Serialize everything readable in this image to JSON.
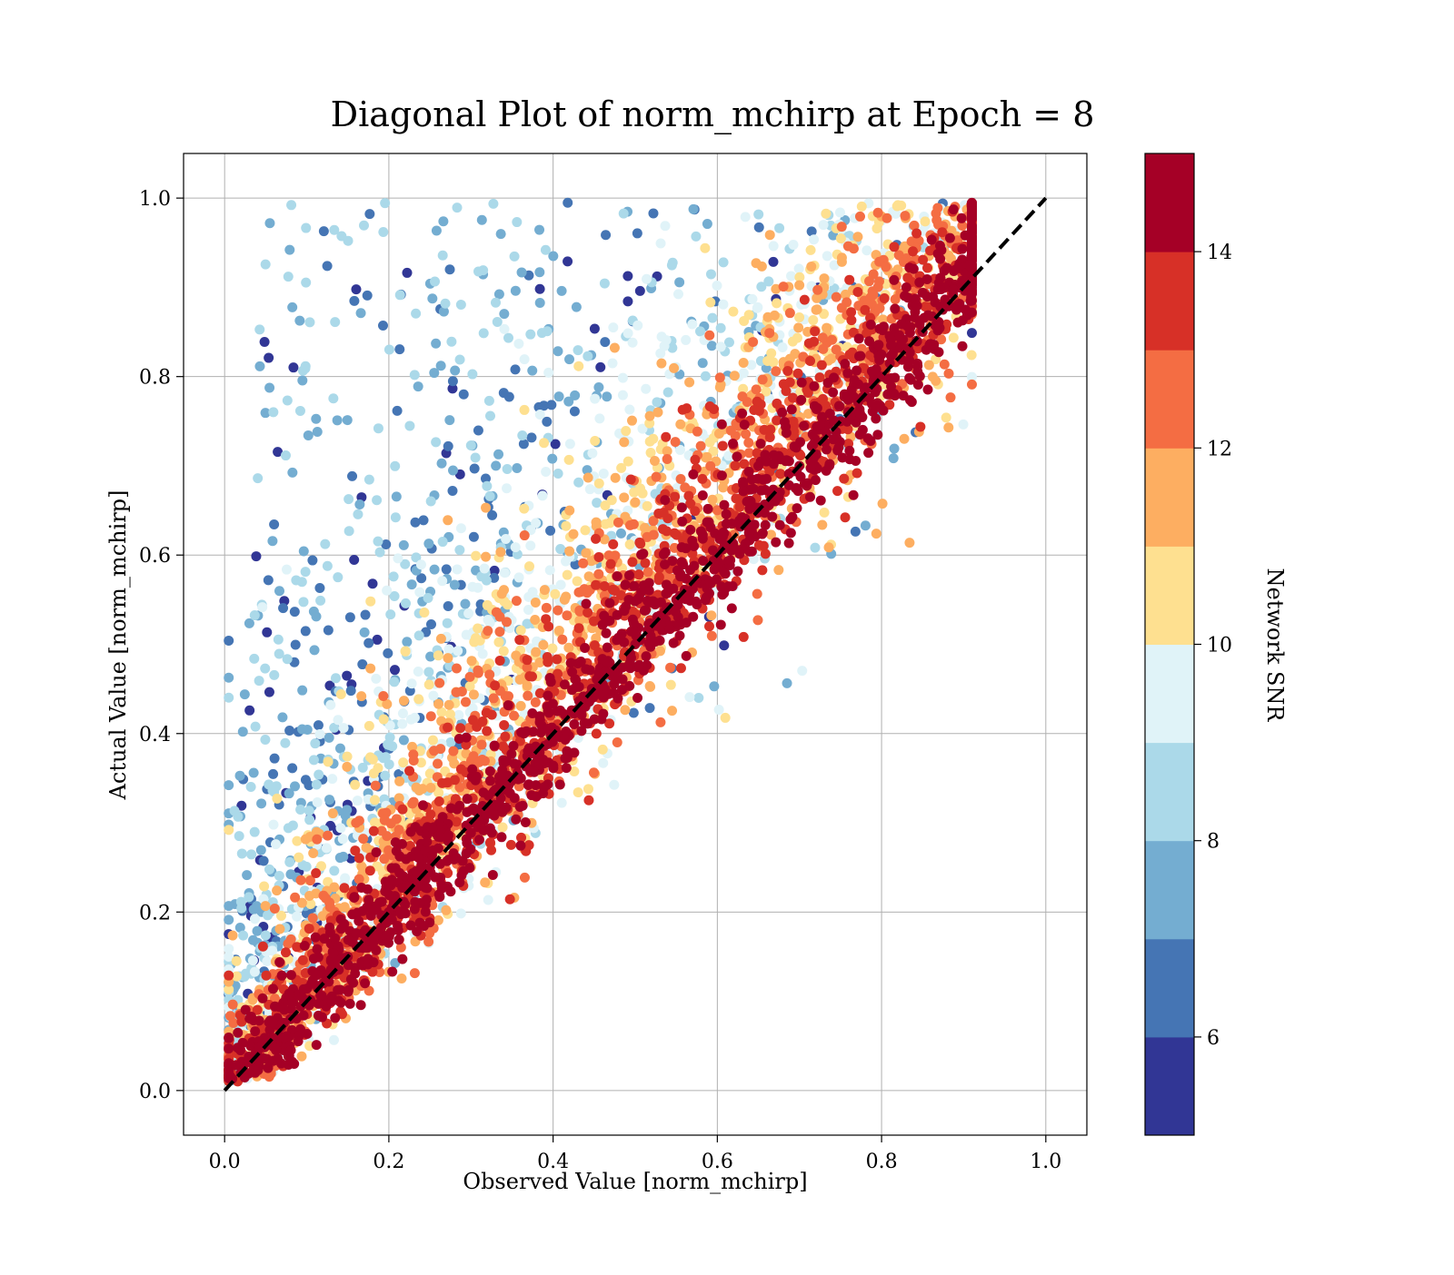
{
  "chart_data": {
    "type": "scatter",
    "title": "Diagonal Plot of norm_mchirp at Epoch = 8",
    "xlabel": "Observed Value [norm_mchirp]",
    "ylabel": "Actual Value [norm_mchirp]",
    "xlim": [
      -0.05,
      1.05
    ],
    "ylim": [
      -0.05,
      1.05
    ],
    "xticks": [
      0.0,
      0.2,
      0.4,
      0.6,
      0.8,
      1.0
    ],
    "yticks": [
      0.0,
      0.2,
      0.4,
      0.6,
      0.8,
      1.0
    ],
    "xtick_labels": [
      "0.0",
      "0.2",
      "0.4",
      "0.6",
      "0.8",
      "1.0"
    ],
    "ytick_labels": [
      "0.0",
      "0.2",
      "0.4",
      "0.6",
      "0.8",
      "1.0"
    ],
    "grid": true,
    "reference_line": {
      "x": [
        0,
        1
      ],
      "y": [
        0,
        1
      ],
      "style": "dashed",
      "color": "#000000"
    },
    "colorbar": {
      "label": "Network SNR",
      "range": [
        5,
        15
      ],
      "ticks": [
        6,
        8,
        10,
        12,
        14
      ],
      "tick_labels": [
        "6",
        "8",
        "10",
        "12",
        "14"
      ],
      "colors": [
        "#313695",
        "#4575b4",
        "#74add1",
        "#abd9e9",
        "#e0f3f8",
        "#fee090",
        "#fdae61",
        "#f46d43",
        "#d73027",
        "#a50026"
      ],
      "levels": 10
    },
    "series": [
      {
        "points_note_x": [
          0.02,
          0.05,
          0.08,
          0.1,
          0.12,
          0.15,
          0.2,
          0.25,
          0.3,
          0.35,
          0.4,
          0.45,
          0.5,
          0.55,
          0.6,
          0.65,
          0.7,
          0.75,
          0.8,
          0.85,
          0.9
        ],
        "x": [
          0.02,
          0.05,
          0.08,
          0.1,
          0.12,
          0.15,
          0.2,
          0.25,
          0.3,
          0.35,
          0.4,
          0.45,
          0.5,
          0.55,
          0.6,
          0.65,
          0.7,
          0.75,
          0.8,
          0.85,
          0.9
        ],
        "y": [
          0.02,
          0.05,
          0.08,
          0.1,
          0.12,
          0.15,
          0.2,
          0.25,
          0.3,
          0.35,
          0.4,
          0.45,
          0.5,
          0.55,
          0.6,
          0.65,
          0.7,
          0.75,
          0.8,
          0.85,
          0.9
        ],
        "snr": [
          15,
          15,
          15,
          15,
          15,
          15,
          15,
          15,
          15,
          15,
          15,
          15,
          15,
          15,
          15,
          15,
          15,
          15,
          15,
          15,
          15
        ]
      }
    ]
  }
}
